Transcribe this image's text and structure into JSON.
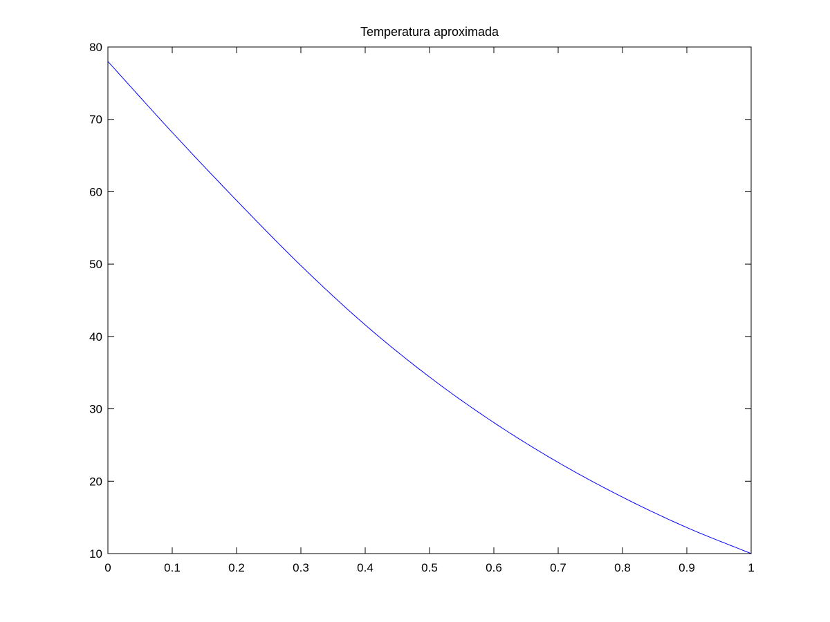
{
  "chart_data": {
    "type": "line",
    "title": "Temperatura aproximada",
    "xlabel": "",
    "ylabel": "",
    "xlim": [
      0,
      1
    ],
    "ylim": [
      10,
      80
    ],
    "xticks": [
      0,
      0.1,
      0.2,
      0.3,
      0.4,
      0.5,
      0.6,
      0.7,
      0.8,
      0.9,
      1
    ],
    "xtick_labels": [
      "0",
      "0.1",
      "0.2",
      "0.3",
      "0.4",
      "0.5",
      "0.6",
      "0.7",
      "0.8",
      "0.9",
      "1"
    ],
    "yticks": [
      10,
      20,
      30,
      40,
      50,
      60,
      70,
      80
    ],
    "ytick_labels": [
      "10",
      "20",
      "30",
      "40",
      "50",
      "60",
      "70",
      "80"
    ],
    "grid": false,
    "legend": "none",
    "series": [
      {
        "color": "#0000ff",
        "x": [
          0,
          0.1,
          0.2,
          0.3,
          0.4,
          0.5,
          0.6,
          0.7,
          0.8,
          0.9,
          1.0
        ],
        "y": [
          78,
          68.2,
          58.8,
          49.8,
          41.6,
          34.4,
          28.1,
          22.6,
          17.8,
          13.6,
          10
        ]
      }
    ]
  }
}
